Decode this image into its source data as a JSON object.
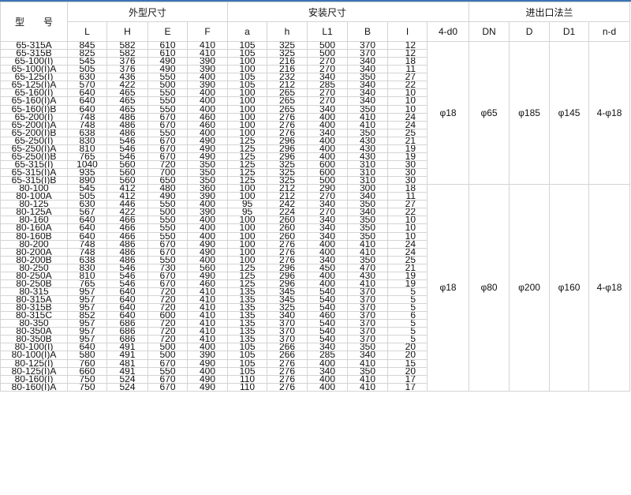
{
  "header": {
    "model": "型　　号",
    "group_outline": "外型尺寸",
    "group_install": "安装尺寸",
    "group_flange": "进出口法兰",
    "columns": [
      "L",
      "H",
      "E",
      "F",
      "a",
      "h",
      "L1",
      "B",
      "I",
      "4-d0",
      "DN",
      "D",
      "D1",
      "n-d"
    ]
  },
  "colors": {
    "top_bar": "#3c74b4",
    "grid": "#d4d4d4"
  },
  "groups": [
    {
      "flange": [
        "φ18",
        "φ65",
        "φ185",
        "φ145",
        "4-φ18"
      ],
      "rows": [
        [
          "65-315A",
          "845",
          "582",
          "610",
          "410",
          "105",
          "325",
          "500",
          "370",
          "12"
        ],
        [
          "65-315B",
          "825",
          "582",
          "610",
          "410",
          "105",
          "325",
          "500",
          "370",
          "12"
        ],
        [
          "65-100(I)",
          "545",
          "376",
          "490",
          "390",
          "100",
          "216",
          "270",
          "340",
          "18"
        ],
        [
          "65-100(I)A",
          "505",
          "376",
          "490",
          "390",
          "100",
          "216",
          "270",
          "340",
          "11"
        ],
        [
          "65-125(I)",
          "630",
          "436",
          "550",
          "400",
          "105",
          "232",
          "340",
          "350",
          "27"
        ],
        [
          "65-125(I)A",
          "570",
          "422",
          "500",
          "390",
          "105",
          "212",
          "285",
          "340",
          "22"
        ],
        [
          "65-160(I)",
          "640",
          "465",
          "550",
          "400",
          "100",
          "265",
          "270",
          "340",
          "10"
        ],
        [
          "65-160(I)A",
          "640",
          "465",
          "550",
          "400",
          "100",
          "265",
          "270",
          "340",
          "10"
        ],
        [
          "65-160(I)B",
          "640",
          "465",
          "550",
          "400",
          "100",
          "265",
          "340",
          "350",
          "10"
        ],
        [
          "65-200(I)",
          "748",
          "486",
          "670",
          "460",
          "100",
          "276",
          "400",
          "410",
          "24"
        ],
        [
          "65-200(I)A",
          "748",
          "486",
          "670",
          "460",
          "100",
          "276",
          "400",
          "410",
          "24"
        ],
        [
          "65-200(I)B",
          "638",
          "486",
          "550",
          "400",
          "100",
          "276",
          "340",
          "350",
          "25"
        ],
        [
          "65-250(I)",
          "830",
          "546",
          "670",
          "490",
          "125",
          "296",
          "400",
          "430",
          "21"
        ],
        [
          "65-250(I)A",
          "810",
          "546",
          "670",
          "490",
          "125",
          "296",
          "400",
          "430",
          "19"
        ],
        [
          "65-250(I)B",
          "765",
          "546",
          "670",
          "490",
          "125",
          "296",
          "400",
          "430",
          "19"
        ],
        [
          "65-315(I)",
          "1040",
          "560",
          "720",
          "350",
          "125",
          "325",
          "600",
          "310",
          "30"
        ],
        [
          "65-315(I)A",
          "935",
          "560",
          "700",
          "350",
          "125",
          "325",
          "600",
          "310",
          "30"
        ],
        [
          "65-315(I)B",
          "890",
          "560",
          "650",
          "350",
          "125",
          "325",
          "500",
          "310",
          "30"
        ]
      ]
    },
    {
      "flange": [
        "φ18",
        "φ80",
        "φ200",
        "φ160",
        "4-φ18"
      ],
      "rows": [
        [
          "80-100",
          "545",
          "412",
          "480",
          "360",
          "100",
          "212",
          "290",
          "300",
          "18"
        ],
        [
          "80-100A",
          "505",
          "412",
          "490",
          "390",
          "100",
          "212",
          "270",
          "340",
          "11"
        ],
        [
          "80-125",
          "630",
          "446",
          "550",
          "400",
          "95",
          "242",
          "340",
          "350",
          "27"
        ],
        [
          "80-125A",
          "567",
          "422",
          "500",
          "390",
          "95",
          "224",
          "270",
          "340",
          "22"
        ],
        [
          "80-160",
          "640",
          "466",
          "550",
          "400",
          "100",
          "260",
          "340",
          "350",
          "10"
        ],
        [
          "80-160A",
          "640",
          "466",
          "550",
          "400",
          "100",
          "260",
          "340",
          "350",
          "10"
        ],
        [
          "80-160B",
          "640",
          "466",
          "550",
          "400",
          "100",
          "260",
          "340",
          "350",
          "10"
        ],
        [
          "80-200",
          "748",
          "486",
          "670",
          "490",
          "100",
          "276",
          "400",
          "410",
          "24"
        ],
        [
          "80-200A",
          "748",
          "486",
          "670",
          "490",
          "100",
          "276",
          "400",
          "410",
          "24"
        ],
        [
          "80-200B",
          "638",
          "486",
          "550",
          "400",
          "100",
          "276",
          "340",
          "350",
          "25"
        ],
        [
          "80-250",
          "830",
          "546",
          "730",
          "560",
          "125",
          "296",
          "450",
          "470",
          "21"
        ],
        [
          "80-250A",
          "810",
          "546",
          "670",
          "490",
          "125",
          "296",
          "400",
          "430",
          "19"
        ],
        [
          "80-250B",
          "765",
          "546",
          "670",
          "460",
          "125",
          "296",
          "400",
          "410",
          "19"
        ],
        [
          "80-315",
          "957",
          "640",
          "720",
          "410",
          "135",
          "345",
          "540",
          "370",
          "5"
        ],
        [
          "80-315A",
          "957",
          "640",
          "720",
          "410",
          "135",
          "345",
          "540",
          "370",
          "5"
        ],
        [
          "80-315B",
          "957",
          "640",
          "720",
          "410",
          "135",
          "325",
          "540",
          "370",
          "5"
        ],
        [
          "80-315C",
          "852",
          "640",
          "600",
          "410",
          "135",
          "340",
          "460",
          "370",
          "6"
        ],
        [
          "80-350",
          "957",
          "686",
          "720",
          "410",
          "135",
          "370",
          "540",
          "370",
          "5"
        ],
        [
          "80-350A",
          "957",
          "686",
          "720",
          "410",
          "135",
          "370",
          "540",
          "370",
          "5"
        ],
        [
          "80-350B",
          "957",
          "686",
          "720",
          "410",
          "135",
          "370",
          "540",
          "370",
          "5"
        ],
        [
          "80-100(I)",
          "640",
          "491",
          "500",
          "400",
          "105",
          "266",
          "340",
          "350",
          "20"
        ],
        [
          "80-100(I)A",
          "580",
          "491",
          "500",
          "390",
          "105",
          "266",
          "285",
          "340",
          "20"
        ],
        [
          "80-125(I)",
          "760",
          "481",
          "670",
          "490",
          "105",
          "276",
          "400",
          "410",
          "15"
        ],
        [
          "80-125(I)A",
          "660",
          "491",
          "550",
          "400",
          "105",
          "276",
          "340",
          "350",
          "20"
        ],
        [
          "80-160(I)",
          "750",
          "524",
          "670",
          "490",
          "110",
          "276",
          "400",
          "410",
          "17"
        ],
        [
          "80-160(I)A",
          "750",
          "524",
          "670",
          "490",
          "110",
          "276",
          "400",
          "410",
          "17"
        ]
      ]
    }
  ]
}
